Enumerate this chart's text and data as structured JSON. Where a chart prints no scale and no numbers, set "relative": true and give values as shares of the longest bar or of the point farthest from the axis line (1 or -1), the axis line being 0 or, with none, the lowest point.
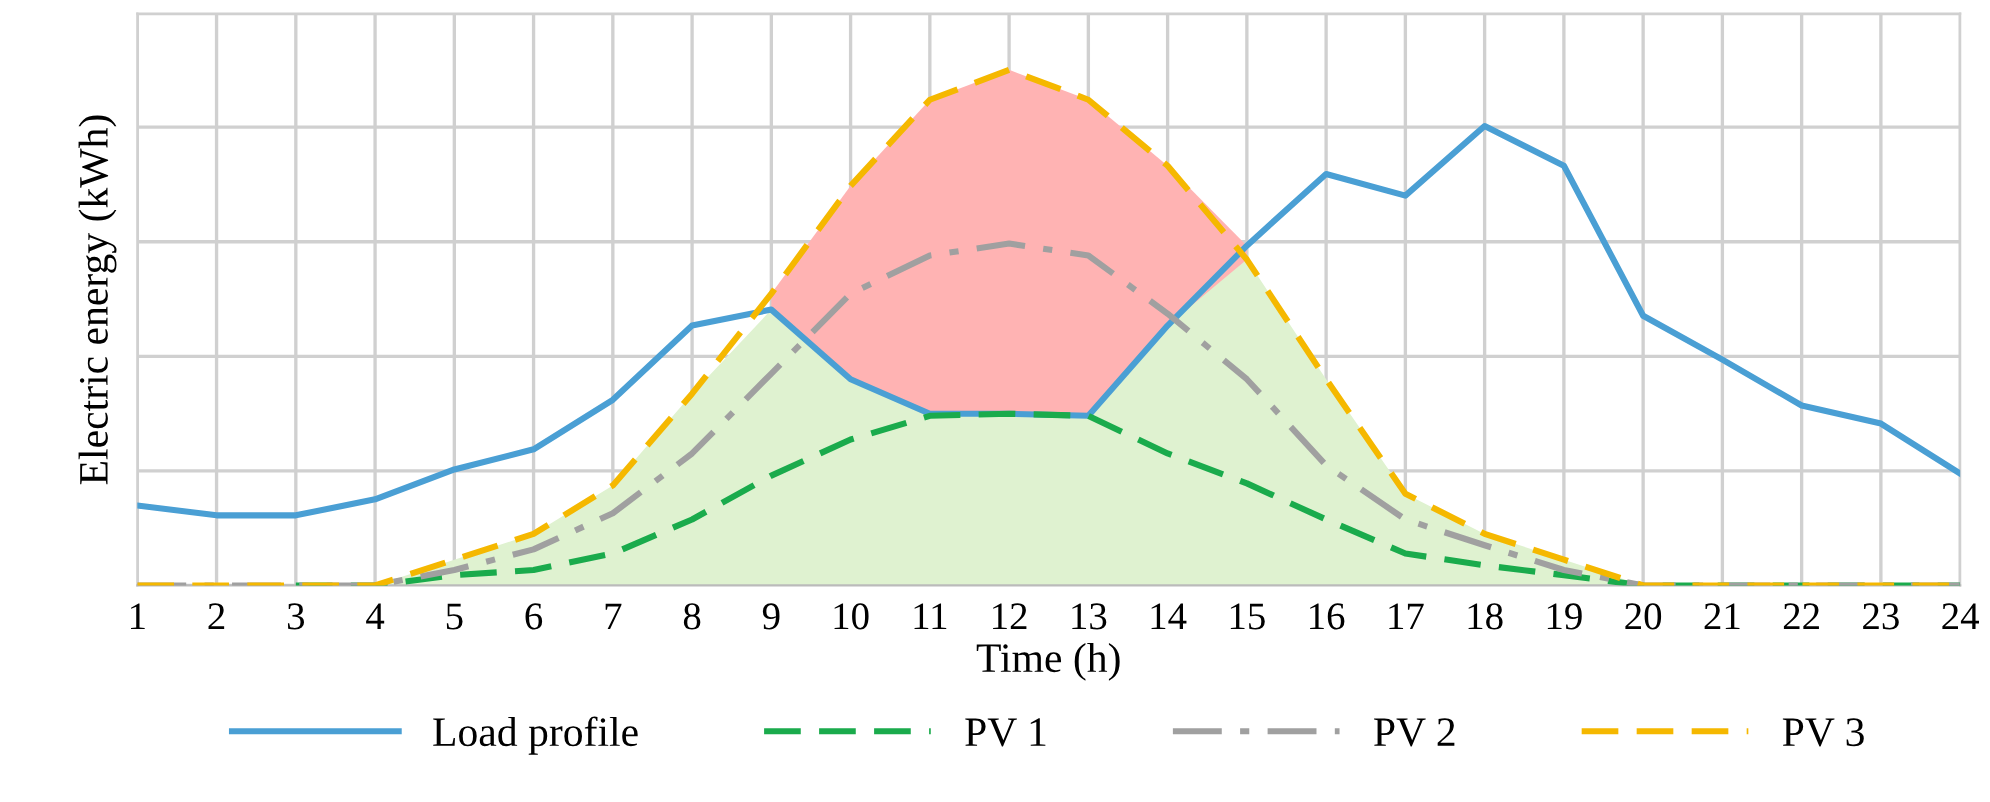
{
  "chart_data": {
    "type": "line",
    "xlabel": "Time (h)",
    "ylabel": "Electric energy (kWh)",
    "relative": true,
    "grid": true,
    "legend": "bottom",
    "tick_labels": "x",
    "categories": [
      "1",
      "2",
      "3",
      "4",
      "5",
      "6",
      "7",
      "8",
      "9",
      "10",
      "11",
      "12",
      "13",
      "14",
      "15",
      "16",
      "17",
      "18",
      "19",
      "20",
      "21",
      "22",
      "23",
      "24"
    ],
    "series": [
      {
        "type": "area",
        "color": "#dff2d0",
        "values": [
          0,
          0,
          0,
          0,
          0.05,
          0.1,
          0.194,
          0.372,
          0.535,
          0.4,
          0.333,
          0.333,
          0.329,
          0.504,
          0.632,
          0.4,
          0.178,
          0.1,
          0.05,
          0,
          0,
          0,
          0,
          0
        ]
      },
      {
        "type": "area",
        "color": "#ffb3b3",
        "values": [
          null,
          null,
          null,
          null,
          null,
          null,
          null,
          null,
          0.566,
          0.775,
          0.942,
          1.0,
          0.942,
          0.814,
          0.659,
          null,
          null,
          null,
          null,
          null,
          null,
          null,
          null,
          null
        ]
      },
      {
        "name": "Load profile",
        "color": "#4a9fd4",
        "line_style": "solid",
        "values": [
          0.155,
          0.136,
          0.136,
          0.167,
          0.225,
          0.264,
          0.36,
          0.504,
          0.535,
          0.4,
          0.333,
          0.333,
          0.329,
          0.504,
          0.659,
          0.798,
          0.756,
          0.891,
          0.814,
          0.523,
          0.438,
          0.349,
          0.314,
          0.217
        ]
      },
      {
        "name": "PV 1",
        "color": "#1aab4c",
        "line_style": "dashed",
        "values": [
          null,
          null,
          0,
          0,
          0.02,
          0.03,
          0.062,
          0.128,
          0.213,
          0.283,
          0.329,
          0.333,
          0.329,
          0.256,
          0.198,
          0.128,
          0.062,
          0.039,
          0.02,
          0,
          0,
          0,
          0,
          0
        ]
      },
      {
        "name": "PV 2",
        "color": "#a0a0a0",
        "line_style": "dashdot",
        "values": [
          0,
          0,
          0,
          0,
          0.03,
          0.07,
          0.14,
          0.256,
          0.411,
          0.566,
          0.64,
          0.663,
          0.64,
          0.527,
          0.4,
          0.233,
          0.128,
          0.078,
          0.03,
          0,
          0,
          0,
          0,
          0
        ]
      },
      {
        "name": "PV 3",
        "color": "#f5b800",
        "line_style": "dashed",
        "values": [
          0,
          0,
          0,
          0,
          0.05,
          0.1,
          0.194,
          0.372,
          0.566,
          0.775,
          0.942,
          1.0,
          0.942,
          0.814,
          0.632,
          0.4,
          0.178,
          0.1,
          0.05,
          0,
          0,
          0,
          0,
          0
        ]
      }
    ]
  }
}
